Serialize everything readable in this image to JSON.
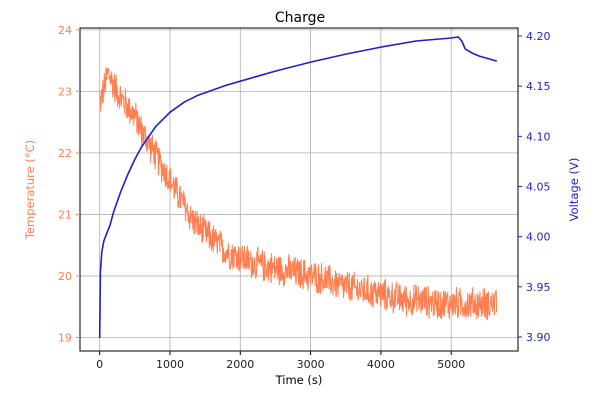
{
  "chart_data": {
    "type": "line",
    "title": "Charge",
    "xlabel": "Time (s)",
    "ylabel_left": "Temperature (°C)",
    "ylabel_right": "Voltage (V)",
    "xlim": [
      -280,
      5950
    ],
    "ylim_left": [
      18.78,
      24.03
    ],
    "ylim_right": [
      3.886,
      4.208
    ],
    "x_ticks": [
      0,
      1000,
      2000,
      3000,
      4000,
      5000
    ],
    "y_left_ticks": [
      19,
      20,
      21,
      22,
      23,
      24
    ],
    "y_right_ticks": [
      3.9,
      3.95,
      4.0,
      4.05,
      4.1,
      4.15,
      4.2
    ],
    "x_tick_labels": [
      "0",
      "1000",
      "2000",
      "3000",
      "4000",
      "5000"
    ],
    "y_left_tick_labels": [
      "19",
      "20",
      "21",
      "22",
      "23",
      "24"
    ],
    "y_right_tick_labels": [
      "3.90",
      "3.95",
      "4.00",
      "4.05",
      "4.10",
      "4.15",
      "4.20"
    ],
    "grid": true,
    "colors": {
      "temperature": "#ff7f50",
      "voltage": "#1f1fd0",
      "grid": "#b0b0b0"
    },
    "series": [
      {
        "axis": "left",
        "noise_amplitude": 0.3,
        "x": [
          0,
          50,
          120,
          200,
          300,
          400,
          500,
          600,
          700,
          800,
          900,
          1000,
          1100,
          1200,
          1300,
          1400,
          1500,
          1600,
          1700,
          1800,
          1900,
          2000,
          2200,
          2400,
          2600,
          2800,
          3000,
          3200,
          3400,
          3600,
          3800,
          4000,
          4200,
          4400,
          4600,
          4800,
          5000,
          5200,
          5400,
          5600,
          5650
        ],
        "values": [
          22.8,
          23.0,
          23.3,
          23.1,
          22.9,
          22.75,
          22.6,
          22.35,
          22.15,
          21.95,
          21.75,
          21.55,
          21.35,
          21.15,
          20.95,
          20.8,
          20.7,
          20.6,
          20.5,
          20.4,
          20.35,
          20.3,
          20.2,
          20.15,
          20.1,
          20.05,
          20.0,
          19.95,
          19.85,
          19.8,
          19.75,
          19.7,
          19.65,
          19.6,
          19.6,
          19.55,
          19.55,
          19.55,
          19.55,
          19.55,
          19.6
        ]
      },
      {
        "axis": "right",
        "x": [
          0,
          10,
          30,
          60,
          100,
          150,
          200,
          300,
          400,
          500,
          600,
          800,
          1000,
          1200,
          1400,
          1600,
          1800,
          2000,
          2500,
          3000,
          3500,
          4000,
          4500,
          5000,
          5100,
          5150,
          5200,
          5300,
          5400,
          5500,
          5600,
          5650
        ],
        "values": [
          3.899,
          3.965,
          3.985,
          3.996,
          4.003,
          4.012,
          4.025,
          4.045,
          4.062,
          4.077,
          4.09,
          4.11,
          4.124,
          4.134,
          4.141,
          4.146,
          4.151,
          4.155,
          4.165,
          4.174,
          4.182,
          4.189,
          4.195,
          4.198,
          4.199,
          4.195,
          4.187,
          4.183,
          4.18,
          4.178,
          4.176,
          4.175
        ]
      }
    ]
  }
}
